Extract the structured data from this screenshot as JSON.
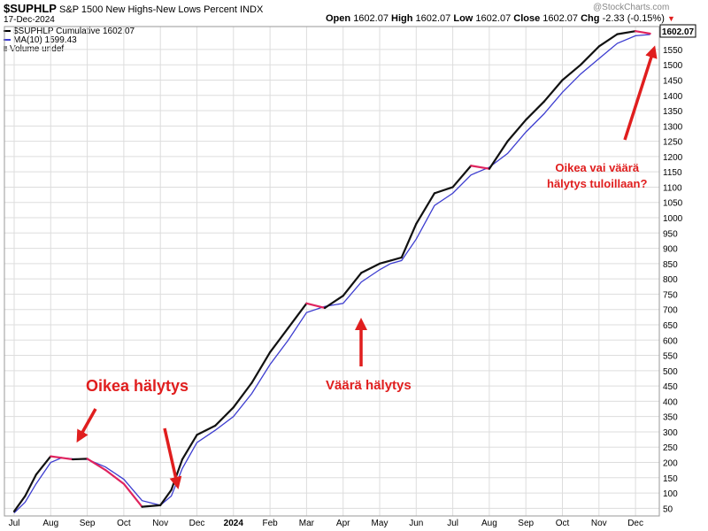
{
  "header": {
    "symbol": "$SUPHLP",
    "description": "S&P 1500 New Highs-New Lows Percent",
    "exchange": "INDX",
    "date": "17-Dec-2024",
    "open_label": "Open",
    "open": "1602.07",
    "high_label": "High",
    "high": "1602.07",
    "low_label": "Low",
    "low": "1602.07",
    "close_label": "Close",
    "close": "1602.07",
    "chg_label": "Chg",
    "chg": "-2.33 (-0.15%)",
    "watermark": "@StockCharts.com"
  },
  "legend": [
    {
      "text": "$SUPHLP Cumulative 1602.07",
      "color": "#000000"
    },
    {
      "text": "MA(10) 1599.43",
      "color": "#3d3dd0"
    },
    {
      "text": "Volume undef",
      "color": "#888888"
    }
  ],
  "price_tag": "1602.07",
  "annotations": [
    {
      "text": "Oikea hälytys"
    },
    {
      "text": "Väärä hälytys"
    },
    {
      "text": "Oikea vai väärä\nhälytys tuloillaan?"
    }
  ],
  "colors": {
    "price_line": "#111111",
    "ma_line": "#3d3dd0",
    "down_segment": "#e0245e",
    "annotation": "#e01e1e",
    "grid": "#dddddd"
  },
  "chart_data": {
    "type": "line",
    "title": "$SUPHLP S&P 1500 New Highs-New Lows Percent INDX",
    "ylim": [
      25,
      1625
    ],
    "yticks": [
      50,
      100,
      150,
      200,
      250,
      300,
      350,
      400,
      450,
      500,
      550,
      600,
      650,
      700,
      750,
      800,
      850,
      900,
      950,
      1000,
      1050,
      1100,
      1150,
      1200,
      1250,
      1300,
      1350,
      1400,
      1450,
      1500,
      1550
    ],
    "xticks": [
      "Jul",
      "Aug",
      "Sep",
      "Oct",
      "Nov",
      "Dec",
      "2024",
      "Feb",
      "Mar",
      "Apr",
      "May",
      "Jun",
      "Jul",
      "Aug",
      "Sep",
      "Oct",
      "Nov",
      "Dec"
    ],
    "series": [
      {
        "name": "$SUPHLP Cumulative",
        "x": [
          0,
          0.3,
          0.6,
          1.0,
          1.3,
          1.6,
          2.0,
          2.5,
          3.0,
          3.5,
          4.0,
          4.3,
          4.6,
          5.0,
          5.5,
          6.0,
          6.5,
          7.0,
          7.5,
          8.0,
          8.5,
          9.0,
          9.5,
          10.0,
          10.3,
          10.6,
          11.0,
          11.5,
          12.0,
          12.5,
          13.0,
          13.5,
          14.0,
          14.5,
          15.0,
          15.5,
          16.0,
          16.5,
          17.0,
          17.4
        ],
        "y": [
          40,
          90,
          160,
          220,
          215,
          210,
          212,
          175,
          130,
          55,
          60,
          110,
          210,
          290,
          320,
          380,
          460,
          560,
          640,
          720,
          705,
          745,
          820,
          850,
          860,
          870,
          980,
          1080,
          1100,
          1170,
          1160,
          1250,
          1320,
          1380,
          1450,
          1500,
          1560,
          1600,
          1610,
          1602
        ]
      },
      {
        "name": "MA(10)",
        "x": [
          0,
          0.3,
          0.6,
          1.0,
          1.3,
          1.6,
          2.0,
          2.5,
          3.0,
          3.5,
          4.0,
          4.3,
          4.6,
          5.0,
          5.5,
          6.0,
          6.5,
          7.0,
          7.5,
          8.0,
          8.5,
          9.0,
          9.5,
          10.0,
          10.3,
          10.6,
          11.0,
          11.5,
          12.0,
          12.5,
          13.0,
          13.5,
          14.0,
          14.5,
          15.0,
          15.5,
          16.0,
          16.5,
          17.0,
          17.4
        ],
        "y": [
          35,
          70,
          130,
          200,
          215,
          212,
          210,
          185,
          145,
          75,
          60,
          90,
          180,
          265,
          305,
          350,
          425,
          520,
          600,
          690,
          710,
          720,
          790,
          830,
          850,
          860,
          930,
          1040,
          1080,
          1140,
          1165,
          1210,
          1280,
          1340,
          1410,
          1470,
          1520,
          1570,
          1595,
          1599
        ]
      }
    ]
  }
}
